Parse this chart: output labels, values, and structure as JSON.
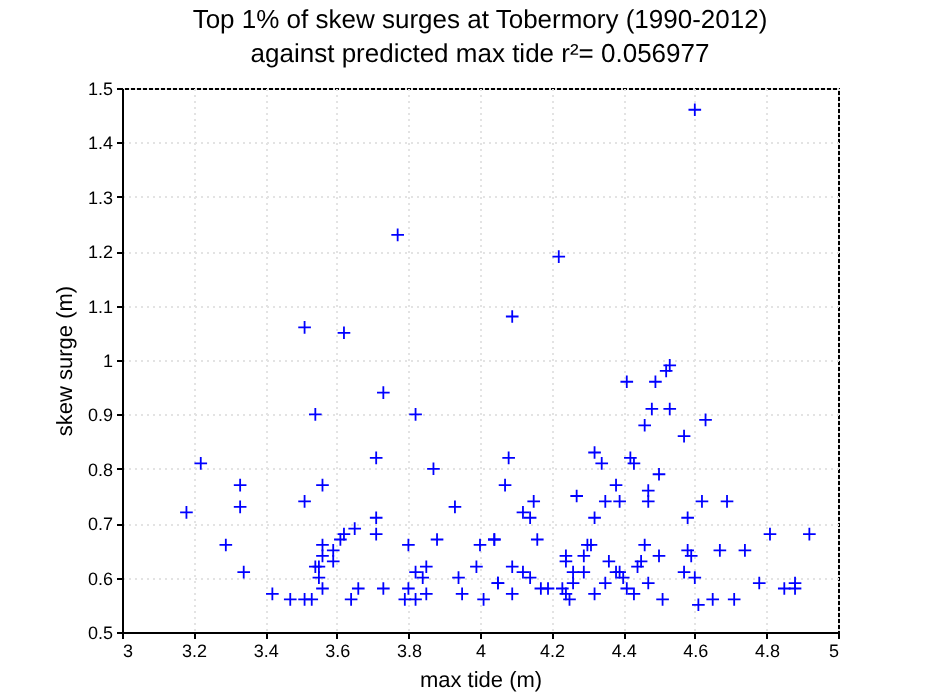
{
  "chart_data": {
    "type": "scatter",
    "title": [
      "Top 1% of skew surges at Tobermory (1990-2012)",
      "against predicted max tide r²= 0.056977"
    ],
    "xlabel": "max tide (m)",
    "ylabel": "skew surge (m)",
    "xlim": [
      3,
      5
    ],
    "xticks": [
      3,
      3.2,
      3.4,
      3.6,
      3.8,
      4,
      4.2,
      4.4,
      4.6,
      4.8,
      5
    ],
    "ylim": [
      0.5,
      1.5
    ],
    "yticks": [
      0.5,
      0.6,
      0.7,
      0.8,
      0.9,
      1,
      1.1,
      1.2,
      1.3,
      1.4,
      1.5
    ],
    "grid": true,
    "marker": "cross",
    "color": "#0000ff",
    "x": [
      3.77,
      3.51,
      3.62,
      4.6,
      4.22,
      4.09,
      4.53,
      4.52,
      4.41,
      4.49,
      3.73,
      3.54,
      3.82,
      3.22,
      3.71,
      3.87,
      3.33,
      3.56,
      3.18,
      3.33,
      3.51,
      3.93,
      3.71,
      3.65,
      3.71,
      3.61,
      3.62,
      4.04,
      3.29,
      3.56,
      3.8,
      3.88,
      4.0,
      3.56,
      3.59,
      3.54,
      3.59,
      3.85,
      3.34,
      3.55,
      3.82,
      3.99,
      3.55,
      3.84,
      3.94,
      4.05,
      3.56,
      3.66,
      3.73,
      3.8,
      3.42,
      3.64,
      3.85,
      3.95,
      3.47,
      3.51,
      3.53,
      3.79,
      3.82,
      4.01,
      4.48,
      4.53,
      4.46,
      4.63,
      4.57,
      4.08,
      4.32,
      4.34,
      4.42,
      4.43,
      4.07,
      4.38,
      4.5,
      4.47,
      4.15,
      4.27,
      4.35,
      4.39,
      4.47,
      4.62,
      4.69,
      4.12,
      4.14,
      4.32,
      4.58,
      4.04,
      4.16,
      4.3,
      4.31,
      4.46,
      4.81,
      4.92,
      4.24,
      4.24,
      4.29,
      4.36,
      4.5,
      4.58,
      4.59,
      4.67,
      4.74,
      4.09,
      4.12,
      4.14,
      4.26,
      4.29,
      4.39,
      4.4,
      4.38,
      4.44,
      4.45,
      4.57,
      4.6,
      4.05,
      4.35,
      4.47,
      4.17,
      4.19,
      4.23,
      4.24,
      4.25,
      4.26,
      4.41,
      4.43,
      4.32,
      4.09,
      4.51,
      4.61,
      4.65,
      4.71,
      4.78,
      4.85,
      4.88,
      4.88
    ],
    "values": [
      1.23,
      1.06,
      1.05,
      1.46,
      1.19,
      1.08,
      0.99,
      0.98,
      0.96,
      0.96,
      0.94,
      0.9,
      0.9,
      0.81,
      0.82,
      0.8,
      0.77,
      0.77,
      0.72,
      0.73,
      0.74,
      0.73,
      0.71,
      0.69,
      0.68,
      0.67,
      0.68,
      0.67,
      0.66,
      0.66,
      0.66,
      0.67,
      0.66,
      0.64,
      0.65,
      0.62,
      0.63,
      0.62,
      0.61,
      0.62,
      0.61,
      0.62,
      0.6,
      0.6,
      0.6,
      0.59,
      0.58,
      0.58,
      0.58,
      0.58,
      0.57,
      0.56,
      0.57,
      0.57,
      0.56,
      0.56,
      0.56,
      0.56,
      0.56,
      0.56,
      0.91,
      0.91,
      0.88,
      0.89,
      0.86,
      0.82,
      0.83,
      0.81,
      0.82,
      0.81,
      0.77,
      0.77,
      0.79,
      0.76,
      0.74,
      0.75,
      0.74,
      0.74,
      0.74,
      0.74,
      0.74,
      0.72,
      0.71,
      0.71,
      0.71,
      0.67,
      0.67,
      0.66,
      0.66,
      0.66,
      0.68,
      0.68,
      0.64,
      0.63,
      0.64,
      0.63,
      0.64,
      0.65,
      0.64,
      0.65,
      0.65,
      0.62,
      0.61,
      0.6,
      0.61,
      0.61,
      0.61,
      0.6,
      0.61,
      0.62,
      0.63,
      0.61,
      0.6,
      0.59,
      0.59,
      0.59,
      0.58,
      0.58,
      0.58,
      0.57,
      0.56,
      0.59,
      0.58,
      0.57,
      0.57,
      0.57,
      0.56,
      0.55,
      0.56,
      0.56,
      0.59,
      0.58,
      0.59,
      0.58
    ]
  }
}
